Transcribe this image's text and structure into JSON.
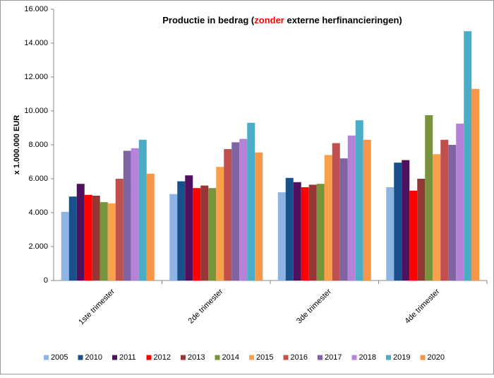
{
  "chart_data": {
    "type": "bar",
    "title_parts": [
      "Productie in bedrag (",
      "zonder",
      " externe herfinancieringen)"
    ],
    "ylabel": "x 1.000.000  EUR",
    "categories": [
      "1ste trimester",
      "2de trimester",
      "3de trimester",
      "4de trimester"
    ],
    "ylim": [
      0,
      16
    ],
    "yticks": [
      {
        "value": 0,
        "label": "0"
      },
      {
        "value": 2,
        "label": "2.000"
      },
      {
        "value": 4,
        "label": "4.000"
      },
      {
        "value": 6,
        "label": "6.000"
      },
      {
        "value": 8,
        "label": "8.000"
      },
      {
        "value": 10,
        "label": "10.000"
      },
      {
        "value": 12,
        "label": "12.000"
      },
      {
        "value": 14,
        "label": "14.000"
      },
      {
        "value": 16,
        "label": "16.000"
      }
    ],
    "grid": false,
    "legend": "bottom",
    "series": [
      {
        "name": "2005",
        "color": "#8db4e2",
        "values": [
          4.05,
          5.1,
          5.2,
          5.5
        ]
      },
      {
        "name": "2010",
        "color": "#17508a",
        "values": [
          4.95,
          5.85,
          6.05,
          6.95
        ]
      },
      {
        "name": "2011",
        "color": "#4f1060",
        "values": [
          5.7,
          6.2,
          5.8,
          7.1
        ]
      },
      {
        "name": "2012",
        "color": "#ff0000",
        "values": [
          5.05,
          5.45,
          5.5,
          5.3
        ]
      },
      {
        "name": "2013",
        "color": "#953735",
        "values": [
          5.0,
          5.6,
          5.65,
          6.0
        ]
      },
      {
        "name": "2014",
        "color": "#77933c",
        "values": [
          4.62,
          5.45,
          5.7,
          9.75
        ]
      },
      {
        "name": "2015",
        "color": "#f9a04b",
        "values": [
          4.55,
          6.7,
          7.4,
          7.45
        ]
      },
      {
        "name": "2016",
        "color": "#c0504d",
        "values": [
          6.0,
          7.75,
          8.1,
          8.3
        ]
      },
      {
        "name": "2017",
        "color": "#8064a2",
        "values": [
          7.65,
          8.15,
          7.2,
          8.0
        ]
      },
      {
        "name": "2018",
        "color": "#b482d6",
        "values": [
          7.8,
          8.35,
          8.55,
          9.25
        ]
      },
      {
        "name": "2019",
        "color": "#4bacc6",
        "values": [
          8.3,
          9.3,
          9.45,
          14.7
        ]
      },
      {
        "name": "2020",
        "color": "#f79646",
        "values": [
          6.3,
          7.55,
          8.3,
          11.3
        ]
      }
    ]
  }
}
